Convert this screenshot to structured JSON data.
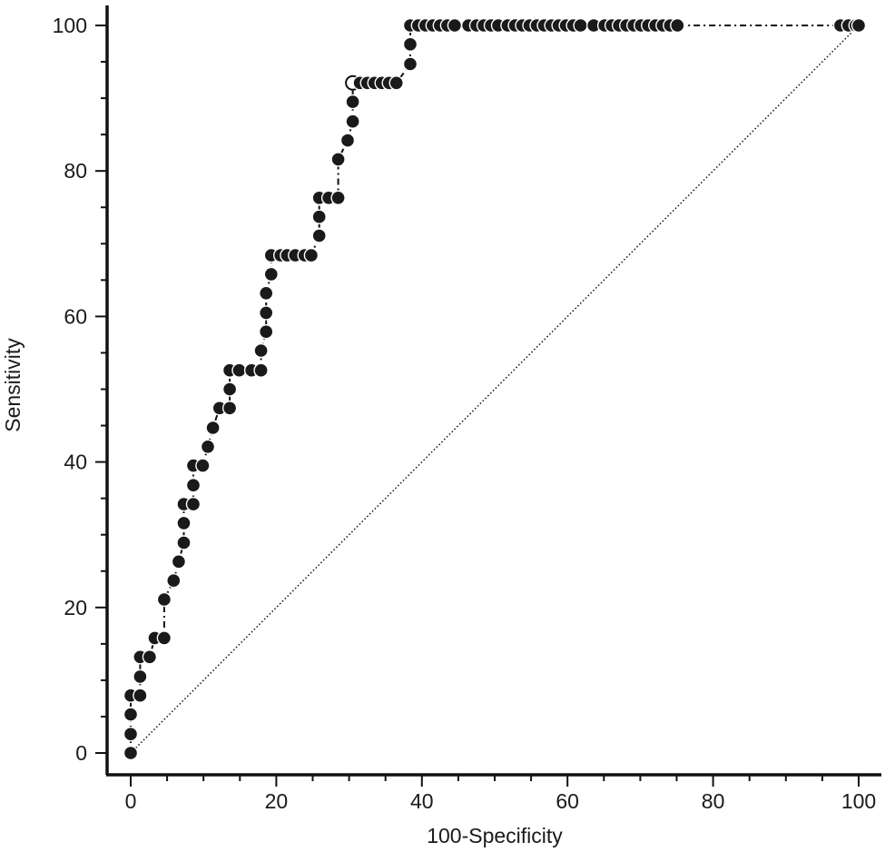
{
  "chart_data": {
    "type": "line",
    "xlabel": "100-Specificity",
    "ylabel": "Sensitivity",
    "xlim": [
      0,
      100
    ],
    "ylim": [
      0,
      100
    ],
    "x_ticks": [
      0,
      20,
      40,
      60,
      80,
      100
    ],
    "y_ticks": [
      0,
      20,
      40,
      60,
      80,
      100
    ],
    "grid": false,
    "series": [
      {
        "style": "dash-dot with filled circular markers",
        "points": [
          [
            0,
            0
          ],
          [
            0,
            2.6
          ],
          [
            0,
            5.3
          ],
          [
            0,
            7.9
          ],
          [
            1.3,
            7.9
          ],
          [
            1.3,
            10.5
          ],
          [
            1.3,
            13.2
          ],
          [
            2.6,
            13.2
          ],
          [
            3.3,
            15.8
          ],
          [
            4.6,
            15.8
          ],
          [
            4.6,
            21.1
          ],
          [
            5.9,
            23.7
          ],
          [
            6.6,
            26.3
          ],
          [
            7.3,
            28.9
          ],
          [
            7.3,
            31.6
          ],
          [
            7.3,
            34.2
          ],
          [
            8.6,
            34.2
          ],
          [
            8.6,
            36.8
          ],
          [
            8.6,
            39.5
          ],
          [
            9.9,
            39.5
          ],
          [
            10.6,
            42.1
          ],
          [
            11.3,
            44.7
          ],
          [
            12.2,
            47.4
          ],
          [
            13.6,
            47.4
          ],
          [
            13.6,
            50.0
          ],
          [
            13.6,
            52.6
          ],
          [
            14.9,
            52.6
          ],
          [
            16.6,
            52.6
          ],
          [
            17.9,
            52.6
          ],
          [
            17.9,
            55.3
          ],
          [
            18.6,
            57.9
          ],
          [
            18.6,
            60.5
          ],
          [
            18.6,
            63.2
          ],
          [
            19.3,
            65.8
          ],
          [
            19.3,
            68.4
          ],
          [
            20.6,
            68.4
          ],
          [
            21.5,
            68.4
          ],
          [
            22.6,
            68.4
          ],
          [
            23.9,
            68.4
          ],
          [
            24.8,
            68.4
          ],
          [
            25.9,
            71.1
          ],
          [
            25.9,
            73.7
          ],
          [
            25.9,
            76.3
          ],
          [
            27.2,
            76.3
          ],
          [
            28.5,
            76.3
          ],
          [
            28.5,
            81.6
          ],
          [
            29.8,
            84.2
          ],
          [
            30.5,
            86.8
          ],
          [
            30.5,
            89.5
          ],
          [
            30.5,
            92.1
          ],
          [
            31.5,
            92.1
          ],
          [
            32.5,
            92.1
          ],
          [
            33.5,
            92.1
          ],
          [
            34.5,
            92.1
          ],
          [
            35.5,
            92.1
          ],
          [
            36.5,
            92.1
          ],
          [
            38.4,
            94.7
          ],
          [
            38.4,
            97.4
          ],
          [
            38.4,
            100
          ],
          [
            39.5,
            100
          ],
          [
            40.5,
            100
          ],
          [
            41.5,
            100
          ],
          [
            42.5,
            100
          ],
          [
            43.5,
            100
          ],
          [
            44.5,
            100
          ],
          [
            46.4,
            100
          ],
          [
            47.5,
            100
          ],
          [
            48.5,
            100
          ],
          [
            49.5,
            100
          ],
          [
            50.5,
            100
          ],
          [
            51.8,
            100
          ],
          [
            52.8,
            100
          ],
          [
            53.8,
            100
          ],
          [
            54.8,
            100
          ],
          [
            55.8,
            100
          ],
          [
            56.8,
            100
          ],
          [
            57.8,
            100
          ],
          [
            58.8,
            100
          ],
          [
            59.8,
            100
          ],
          [
            60.8,
            100
          ],
          [
            61.8,
            100
          ],
          [
            63.6,
            100
          ],
          [
            65.1,
            100
          ],
          [
            66.1,
            100
          ],
          [
            67.1,
            100
          ],
          [
            68.1,
            100
          ],
          [
            69.1,
            100
          ],
          [
            70.1,
            100
          ],
          [
            71.1,
            100
          ],
          [
            72.1,
            100
          ],
          [
            73.1,
            100
          ],
          [
            74.1,
            100
          ],
          [
            75.1,
            100
          ],
          [
            97.5,
            100
          ],
          [
            98.6,
            100
          ],
          [
            99.6,
            100
          ],
          [
            100,
            100
          ]
        ]
      },
      {
        "style": "dotted reference diagonal",
        "points": [
          [
            0,
            0
          ],
          [
            100,
            100
          ]
        ]
      }
    ],
    "highlight_point": [
      30.5,
      92.1
    ]
  }
}
